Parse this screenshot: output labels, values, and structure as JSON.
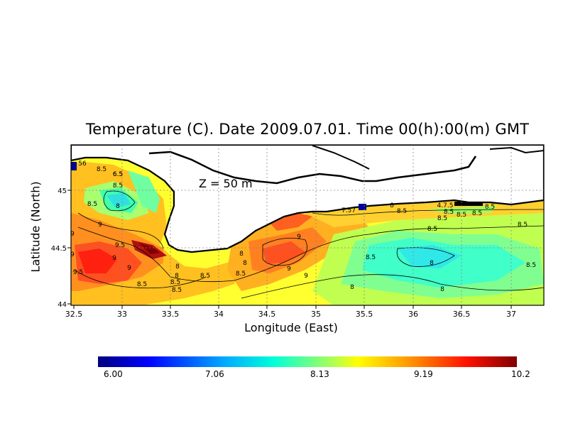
{
  "title": "Temperature (C). Date 2009.07.01. Time 00(h):00(m) GMT",
  "depth_label": "Z  =  50  m",
  "x_axis": {
    "label": "Longitude (East)",
    "ticks": [
      "32.5",
      "33",
      "33.5",
      "34",
      "34.5",
      "35",
      "35.5",
      "36",
      "36.5",
      "37"
    ]
  },
  "y_axis": {
    "label": "Latitude (North)",
    "ticks": [
      "44",
      "44.5",
      "45"
    ]
  },
  "colorbar": {
    "labels": [
      "6.00",
      "7.06",
      "8.13",
      "9.19",
      "10.2"
    ],
    "colors": [
      "#00007f",
      "#0000ff",
      "#00a0ff",
      "#00ffe0",
      "#80ff80",
      "#ffff00",
      "#ff9000",
      "#ff0000",
      "#7f0000"
    ]
  },
  "contour_labels": [
    "8.5",
    "6.5",
    "8.5",
    "8",
    "8.5",
    "9",
    "9",
    "9.5",
    "9",
    "9",
    "9.5",
    "8.5",
    "8",
    "8.5",
    "8.5",
    "8.5",
    "8",
    "9",
    "9",
    "9",
    "9",
    "8.5",
    "8",
    "8.5",
    "8",
    "8.5",
    "8.5",
    "8.5",
    "8.5",
    "8",
    "8.5",
    "8.5",
    "8",
    "8.5",
    "8.5",
    "8",
    "8",
    "8.5",
    "6.5",
    "56",
    "7.57",
    "4.7.5"
  ]
}
